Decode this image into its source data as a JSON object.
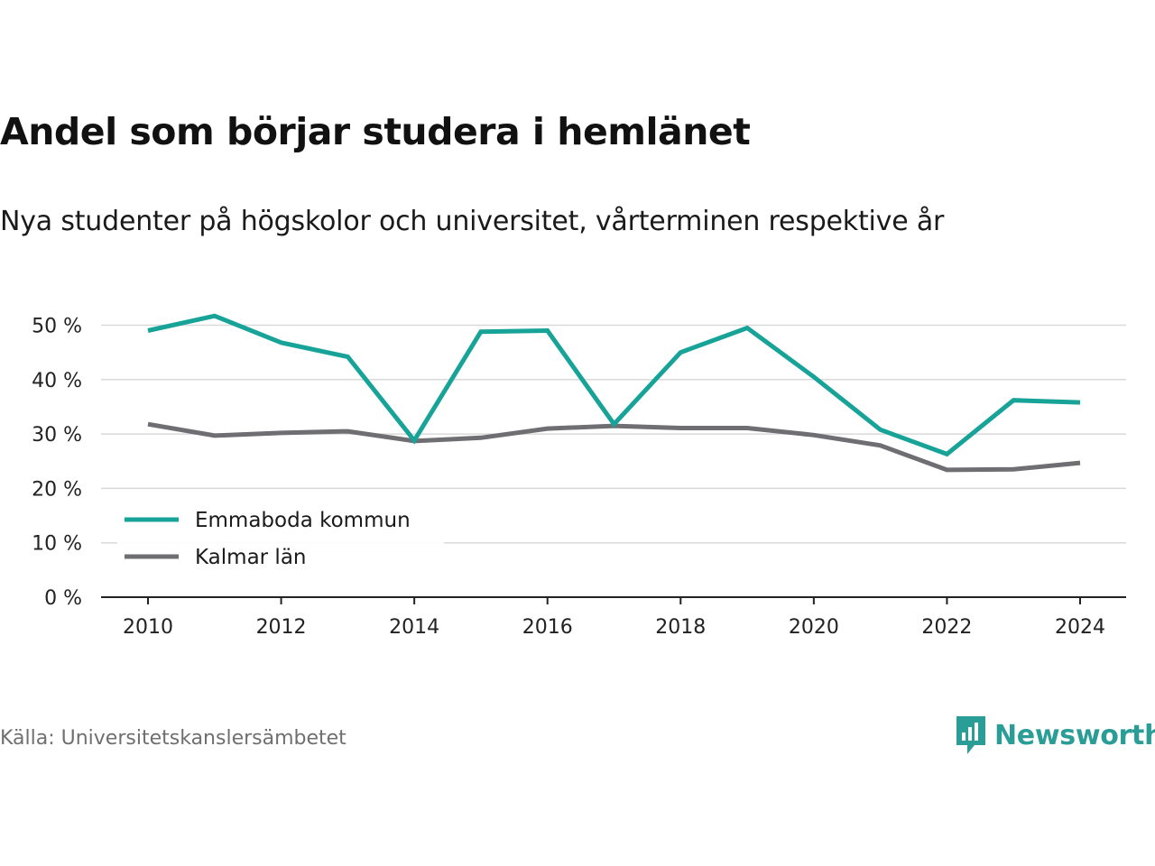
{
  "title": "Andel som börjar studera i hemlänet",
  "subtitle": "Nya studenter på högskolor och universitet, vårterminen respektive år",
  "source": "Källa: Universitetskanslersämbetet",
  "brand": {
    "name": "Newsworthy",
    "icon": "chart-speech-bubble-icon",
    "color": "#2a9d96"
  },
  "chart_data": {
    "type": "line",
    "x": [
      2010,
      2011,
      2012,
      2013,
      2014,
      2015,
      2016,
      2017,
      2018,
      2019,
      2020,
      2021,
      2022,
      2023,
      2024
    ],
    "x_ticks": [
      2010,
      2012,
      2014,
      2016,
      2018,
      2020,
      2022,
      2024
    ],
    "x_tick_labels": [
      "2010",
      "2012",
      "2014",
      "2016",
      "2018",
      "2020",
      "2022",
      "2024"
    ],
    "y_ticks": [
      0,
      10,
      20,
      30,
      40,
      50
    ],
    "y_tick_labels": [
      "0 %",
      "10 %",
      "20 %",
      "30 %",
      "40 %",
      "50 %"
    ],
    "xlim": [
      2009.3,
      2024.7
    ],
    "ylim": [
      0,
      55
    ],
    "grid": true,
    "legend_position": "bottom-left",
    "series": [
      {
        "name": "Emmaboda kommun",
        "color": "#17a398",
        "values": [
          49.0,
          51.7,
          46.8,
          44.2,
          28.8,
          48.8,
          49.0,
          31.8,
          45.0,
          49.5,
          40.5,
          30.8,
          26.3,
          36.2,
          35.8
        ]
      },
      {
        "name": "Kalmar län",
        "color": "#6e6e73",
        "values": [
          31.8,
          29.7,
          30.2,
          30.5,
          28.7,
          29.3,
          31.0,
          31.5,
          31.1,
          31.1,
          29.8,
          27.9,
          23.4,
          23.5,
          24.7
        ]
      }
    ]
  }
}
